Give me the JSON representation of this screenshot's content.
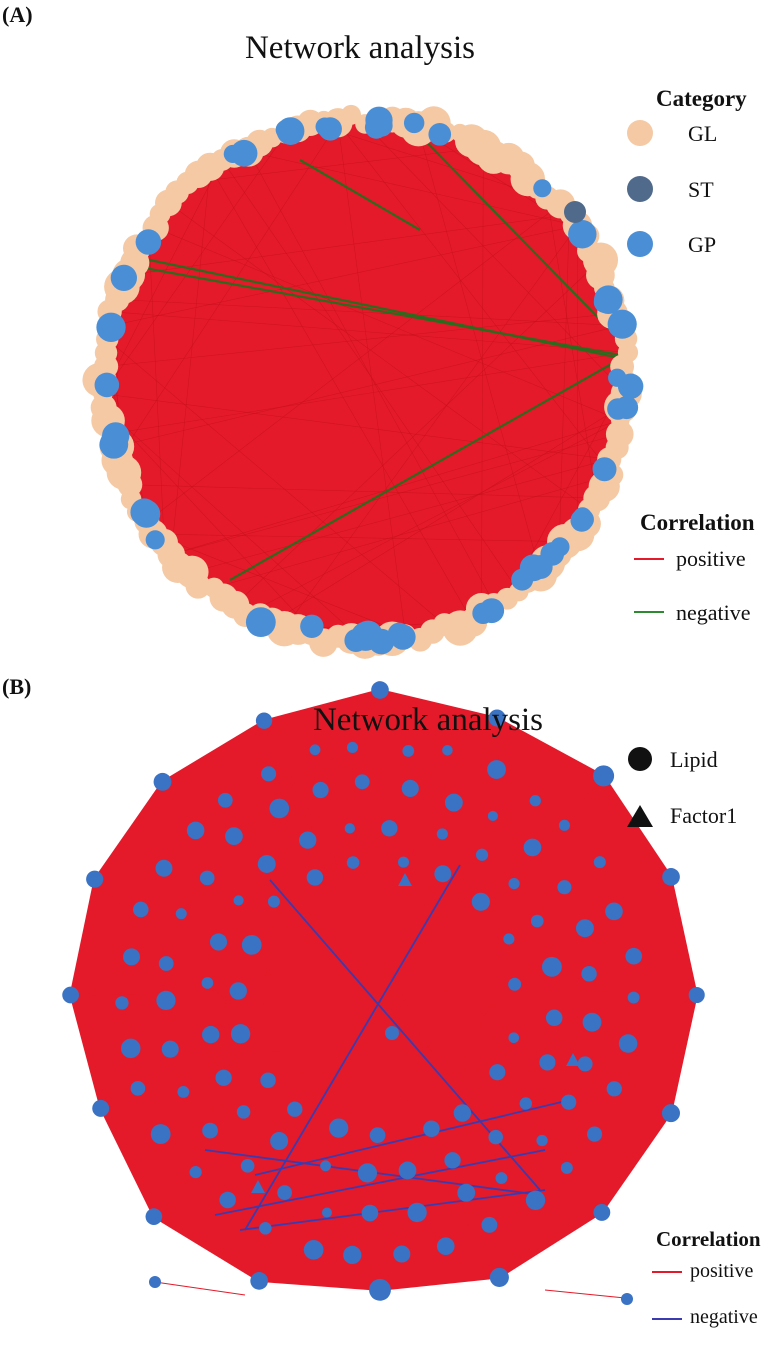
{
  "panelA": {
    "label": "(A)",
    "title": "Network analysis",
    "legend_category": {
      "title": "Category",
      "items": [
        {
          "label": "GL",
          "color": "#f4c9a4"
        },
        {
          "label": "ST",
          "color": "#4f6a8a"
        },
        {
          "label": "GP",
          "color": "#4a8fd6"
        }
      ]
    },
    "legend_correlation": {
      "title": "Correlation",
      "items": [
        {
          "label": "positive",
          "color": "#e41a2a"
        },
        {
          "label": "negative",
          "color": "#2e8a2e"
        }
      ]
    }
  },
  "panelB": {
    "label": "(B)",
    "title": "Network analysis",
    "legend_shape": {
      "items": [
        {
          "label": "Lipid",
          "shape": "circle"
        },
        {
          "label": "Factor1",
          "shape": "triangle"
        }
      ]
    },
    "legend_correlation": {
      "title": "Correlation",
      "items": [
        {
          "label": "positive",
          "color": "#e41a2a"
        },
        {
          "label": "negative",
          "color": "#3b3bb0"
        }
      ]
    }
  },
  "colors": {
    "edge_positive": "#e41a2a",
    "edge_negative_A": "#2e6a1e",
    "edge_negative_B": "#3b3bb0",
    "node_GL": "#f4c9a4",
    "node_ST": "#4f6a8a",
    "node_GP": "#4a8fd6",
    "node_B": "#3a72c4"
  }
}
